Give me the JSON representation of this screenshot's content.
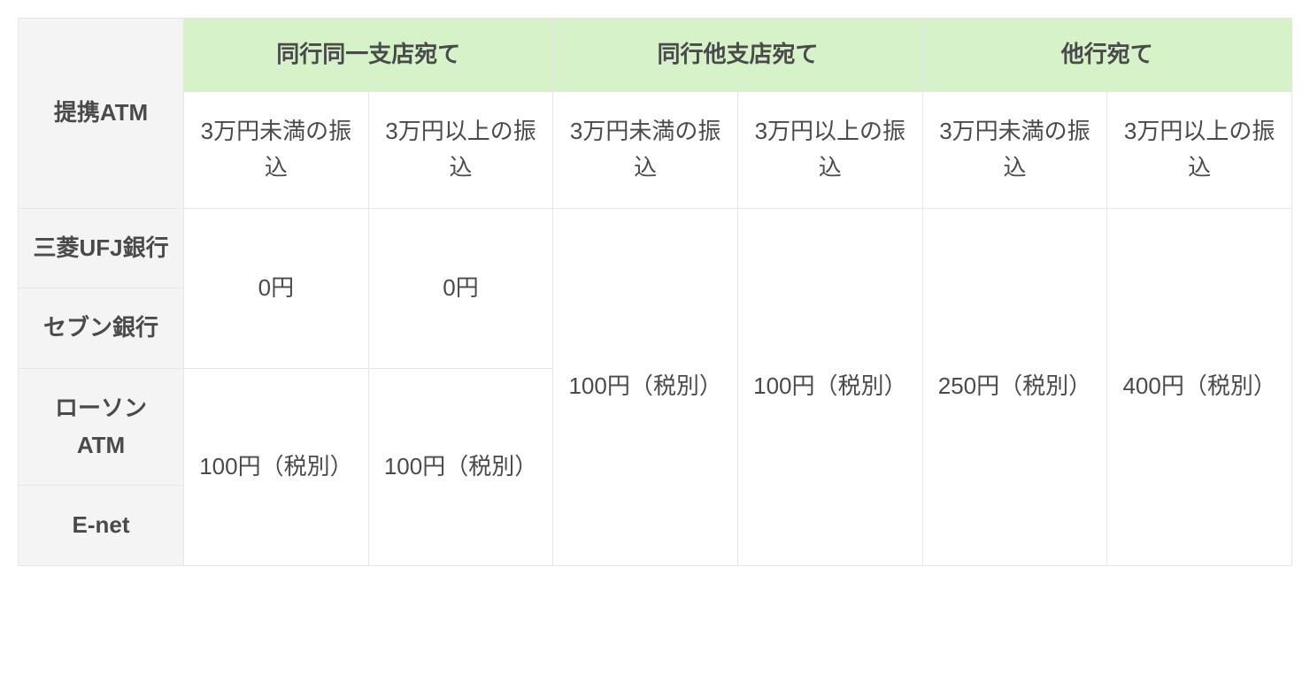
{
  "type": "table",
  "colors": {
    "header_bg": "#d6f2c9",
    "rowhead_bg": "#f4f4f4",
    "cell_bg": "#ffffff",
    "border": "#e6e6e6",
    "text": "#4a4a4a"
  },
  "typography": {
    "base_fontsize_pt": 19,
    "header_weight": 700,
    "cell_weight": 400
  },
  "corner_label": "提携ATM",
  "column_groups": [
    "同行同一支店宛て",
    "同行他支店宛て",
    "他行宛て"
  ],
  "sub_columns": [
    "3万円未満の振込",
    "3万円以上の振込"
  ],
  "row_labels": [
    "三菱UFJ銀行",
    "セブン銀行",
    "ローソンATM",
    "E-net"
  ],
  "cells": {
    "same_branch_under_upper": "0円",
    "same_branch_over_upper": "0円",
    "same_branch_under_lower": "100円（税別）",
    "same_branch_over_lower": "100円（税別）",
    "other_branch_under": "100円（税別）",
    "other_branch_over": "100円（税別）",
    "other_bank_under": "250円（税別）",
    "other_bank_over": "400円（税別）"
  }
}
